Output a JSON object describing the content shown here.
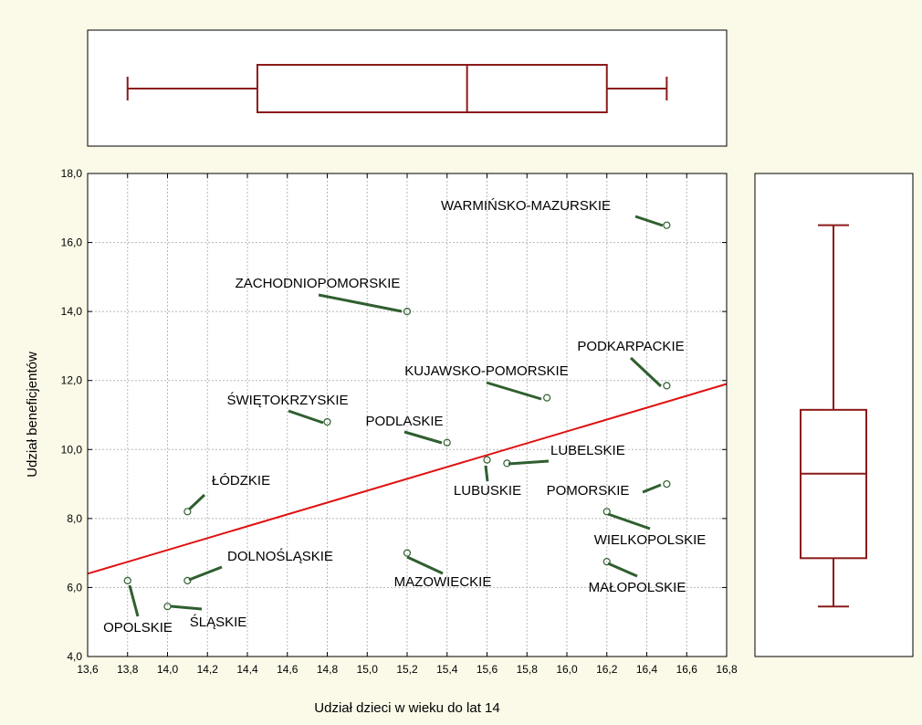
{
  "colors": {
    "background": "#fbf9e8",
    "box": "#8b1a1a",
    "fit_line": "#e01010",
    "leader": "#2f5f2f",
    "grid": "#b8b8b8"
  },
  "chart_data": [
    {
      "type": "scatter",
      "title": "",
      "xlabel": "Udział dzieci w wieku do lat 14",
      "ylabel": "Udział beneficjentów",
      "xlim": [
        13.6,
        16.8
      ],
      "ylim": [
        4.0,
        18.0
      ],
      "x_ticks": [
        "13,6",
        "13,8",
        "14,0",
        "14,2",
        "14,4",
        "14,6",
        "14,8",
        "15,0",
        "15,2",
        "15,4",
        "15,6",
        "15,8",
        "16,0",
        "16,2",
        "16,4",
        "16,6",
        "16,8"
      ],
      "y_ticks": [
        "4,0",
        "6,0",
        "8,0",
        "10,0",
        "12,0",
        "14,0",
        "16,0",
        "18,0"
      ],
      "grid": true,
      "points": [
        {
          "label": "WARMIŃSKO-MAZURSKIE",
          "x": 16.5,
          "y": 16.5
        },
        {
          "label": "ZACHODNIOPOMORSKIE",
          "x": 15.2,
          "y": 14.0
        },
        {
          "label": "PODKARPACKIE",
          "x": 16.5,
          "y": 11.85
        },
        {
          "label": "KUJAWSKO-POMORSKIE",
          "x": 15.9,
          "y": 11.5
        },
        {
          "label": "ŚWIĘTOKRZYSKIE",
          "x": 14.8,
          "y": 10.8
        },
        {
          "label": "PODLASKIE",
          "x": 15.4,
          "y": 10.2
        },
        {
          "label": "LUBELSKIE",
          "x": 15.7,
          "y": 9.6
        },
        {
          "label": "LUBUSKIE",
          "x": 15.6,
          "y": 9.7
        },
        {
          "label": "POMORSKIE",
          "x": 16.5,
          "y": 9.0
        },
        {
          "label": "ŁÓDZKIE",
          "x": 14.1,
          "y": 8.2
        },
        {
          "label": "WIELKOPOLSKIE",
          "x": 16.2,
          "y": 8.2
        },
        {
          "label": "MAZOWIECKIE",
          "x": 15.2,
          "y": 7.0
        },
        {
          "label": "MAŁOPOLSKIE",
          "x": 16.2,
          "y": 6.75
        },
        {
          "label": "DOLNOŚLĄSKIE",
          "x": 14.1,
          "y": 6.2
        },
        {
          "label": "OPOLSKIE",
          "x": 13.8,
          "y": 6.2
        },
        {
          "label": "ŚLĄSKIE",
          "x": 14.0,
          "y": 5.45
        }
      ],
      "fit_line": {
        "x": [
          13.6,
          16.8
        ],
        "y": [
          6.4,
          11.9
        ]
      }
    },
    {
      "type": "box",
      "orientation": "horizontal",
      "variable": "Udział dzieci w wieku do lat 14",
      "min": 13.8,
      "q1": 14.45,
      "median": 15.5,
      "q3": 16.2,
      "max": 16.5
    },
    {
      "type": "box",
      "orientation": "vertical",
      "variable": "Udział beneficjentów",
      "min": 5.45,
      "q1": 6.85,
      "median": 9.3,
      "q3": 11.15,
      "max": 16.5
    }
  ]
}
